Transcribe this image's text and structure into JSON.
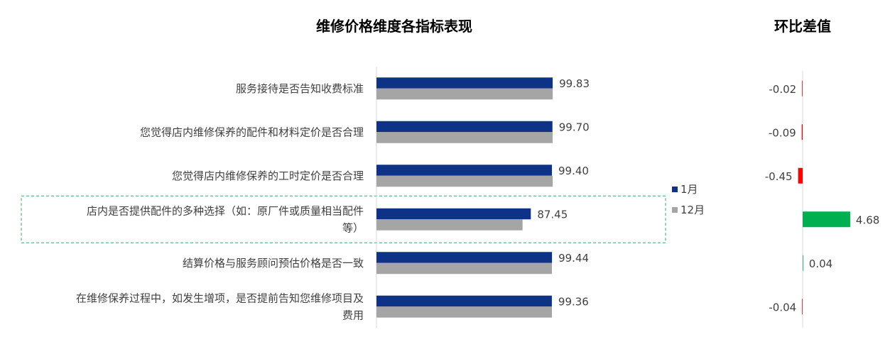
{
  "chart_data": [
    {
      "type": "bar",
      "orientation": "horizontal",
      "title": "维修价格维度各指标表现",
      "categories": [
        [
          "服务接待是否告知收费标准"
        ],
        [
          "您觉得店内维修保养的配件和材料定价是否合理"
        ],
        [
          "您觉得店内维修保养的工时定价是否合理"
        ],
        [
          "店内是否提供配件的多种选择（如：原厂件或质量相当配件",
          "等）"
        ],
        [
          "结算价格与服务顾问预估价格是否一致"
        ],
        [
          "在维修保养过程中，如发生增项，是否提前告知您维修项目及",
          "费用"
        ]
      ],
      "series": [
        {
          "name": "1月",
          "color": "#0e3386",
          "values": [
            99.83,
            99.7,
            99.4,
            87.45,
            99.44,
            99.36
          ]
        },
        {
          "name": "12月",
          "color": "#a5a5a5",
          "values": [
            99.85,
            99.79,
            99.85,
            82.77,
            99.4,
            99.4
          ]
        }
      ],
      "data_labels": [
        "99.83",
        "99.70",
        "99.40",
        "87.45",
        "99.44",
        "99.36"
      ],
      "xlim": [
        0,
        100
      ],
      "legend_position": "right",
      "highlighted_category_index": 3,
      "highlight_color": "#3aa66a"
    },
    {
      "type": "bar",
      "orientation": "horizontal",
      "title": "环比差值",
      "values": [
        -0.02,
        -0.09,
        -0.45,
        4.68,
        0.04,
        -0.04
      ],
      "labels": [
        "-0.02",
        "-0.09",
        "-0.45",
        "4.68",
        "0.04",
        "-0.04"
      ],
      "positive_color": "#00b050",
      "negative_color": "#ff0000"
    }
  ]
}
